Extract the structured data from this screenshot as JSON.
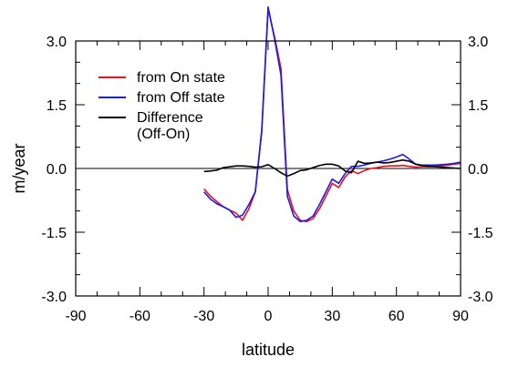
{
  "chart_data": {
    "type": "line",
    "title": "",
    "xlabel": "latitude",
    "ylabel": "m/year",
    "xlim": [
      -90,
      90
    ],
    "ylim": [
      -3.0,
      3.0
    ],
    "x_ticks": [
      -90,
      -60,
      -30,
      0,
      30,
      60,
      90
    ],
    "x_tick_labels": [
      "-90",
      "-60",
      "-30",
      "0",
      "30",
      "60",
      "90"
    ],
    "y_ticks": [
      -3.0,
      -1.5,
      0.0,
      1.5,
      3.0
    ],
    "y_tick_labels": [
      "-3.0",
      "-1.5",
      "0.0",
      "1.5",
      "3.0"
    ],
    "right_y_tick_labels": [
      "-3.0",
      "-1.5",
      "0.0",
      "1.5",
      "3.0"
    ],
    "x_minor_step": 10,
    "y_minor_step": 0.5,
    "zero_line": true,
    "grid": false,
    "legend_position": "upper-left",
    "series": [
      {
        "name": "from On state",
        "color": "#e8101a",
        "x": [
          -30,
          -27,
          -24,
          -21,
          -18,
          -15,
          -12,
          -9,
          -6,
          -3,
          0,
          3,
          6,
          9,
          12,
          15,
          18,
          21,
          24,
          27,
          30,
          33,
          36,
          39,
          42,
          45,
          48,
          51,
          54,
          57,
          60,
          63,
          66,
          69,
          72,
          75,
          78,
          81,
          84,
          87,
          90
        ],
        "y": [
          -0.48,
          -0.65,
          -0.78,
          -0.9,
          -0.98,
          -1.05,
          -1.22,
          -0.95,
          -0.55,
          0.85,
          3.75,
          3.1,
          2.35,
          -0.5,
          -1.0,
          -1.22,
          -1.25,
          -1.18,
          -0.95,
          -0.65,
          -0.35,
          -0.45,
          -0.2,
          -0.05,
          -0.12,
          -0.05,
          0.0,
          0.02,
          0.05,
          0.06,
          0.06,
          0.07,
          0.05,
          0.03,
          0.04,
          0.04,
          0.05,
          0.06,
          0.08,
          0.1,
          0.12
        ]
      },
      {
        "name": "from Off state",
        "color": "#1a1aee",
        "x": [
          -30,
          -27,
          -24,
          -21,
          -18,
          -15,
          -12,
          -9,
          -6,
          -3,
          0,
          3,
          6,
          9,
          12,
          15,
          18,
          21,
          24,
          27,
          30,
          33,
          36,
          39,
          42,
          45,
          48,
          51,
          54,
          57,
          60,
          63,
          66,
          69,
          72,
          75,
          78,
          81,
          84,
          87,
          90
        ],
        "y": [
          -0.55,
          -0.72,
          -0.83,
          -0.9,
          -0.98,
          -1.15,
          -1.1,
          -0.85,
          -0.55,
          0.9,
          3.8,
          3.05,
          2.2,
          -0.65,
          -1.12,
          -1.25,
          -1.22,
          -1.12,
          -0.85,
          -0.55,
          -0.25,
          -0.35,
          -0.12,
          0.05,
          0.05,
          0.08,
          0.12,
          0.15,
          0.18,
          0.22,
          0.27,
          0.33,
          0.22,
          0.1,
          0.08,
          0.08,
          0.08,
          0.09,
          0.1,
          0.12,
          0.15
        ]
      },
      {
        "name": "Difference\n(Off-On)",
        "color": "#000000",
        "x": [
          -30,
          -27,
          -24,
          -21,
          -18,
          -15,
          -12,
          -9,
          -6,
          -3,
          0,
          3,
          6,
          9,
          12,
          15,
          18,
          21,
          24,
          27,
          30,
          33,
          36,
          39,
          42,
          45,
          48,
          51,
          54,
          57,
          60,
          63,
          66,
          69,
          72,
          75,
          78,
          81,
          84,
          87,
          90
        ],
        "y": [
          -0.07,
          -0.06,
          -0.04,
          0.02,
          0.04,
          0.06,
          0.06,
          0.05,
          0.03,
          0.04,
          0.09,
          0.0,
          -0.1,
          -0.18,
          -0.12,
          -0.05,
          -0.03,
          0.02,
          0.07,
          0.1,
          0.1,
          0.06,
          -0.06,
          -0.1,
          0.17,
          0.12,
          0.13,
          0.15,
          0.13,
          0.14,
          0.17,
          0.2,
          0.17,
          0.1,
          0.07,
          0.05,
          0.04,
          0.03,
          0.02,
          0.01,
          0.0
        ]
      }
    ]
  }
}
